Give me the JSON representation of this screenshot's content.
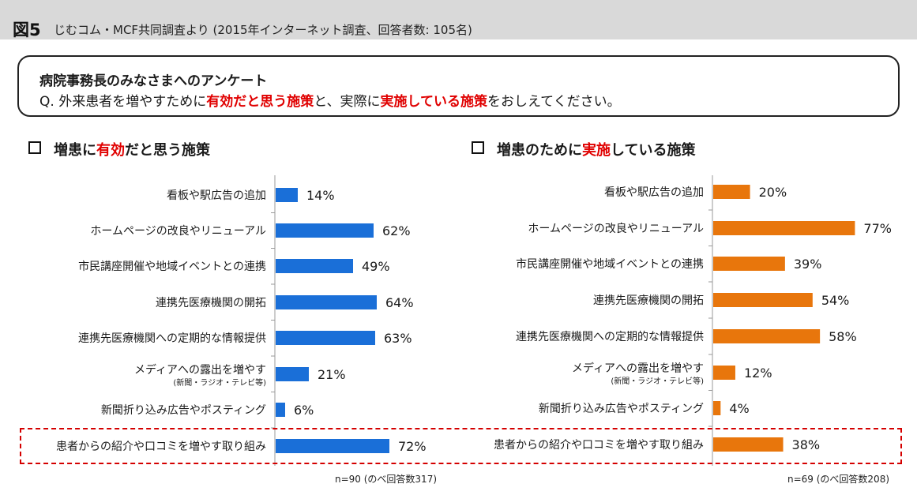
{
  "header": {
    "figure_label": "図5",
    "title": "じむコム・MCF共同調査より (2015年インターネット調査、回答者数: 105名)"
  },
  "question": {
    "title": "病院事務長のみなさまへのアンケート",
    "text_1": "Q. 外来患者を増やすために",
    "highlight_1": "有効だと思う施策",
    "text_2": "と、実際に",
    "highlight_2": "実施している施策",
    "text_3": "をおしえてください。"
  },
  "left_panel": {
    "title_1": "増患に",
    "title_highlight": "有効",
    "title_2": "だと思う施策",
    "footnote": "n=90 (のべ回答数317)"
  },
  "right_panel": {
    "title_1": "増患のために",
    "title_highlight": "実施",
    "title_2": "している施策",
    "footnote": "n=69 (のべ回答数208)"
  },
  "colors": {
    "left_bar": "#1a6fd8",
    "right_bar": "#e8760c",
    "highlight_red": "#e00000"
  },
  "chart_data": [
    {
      "type": "bar",
      "orientation": "horizontal",
      "title": "増患に有効だと思う施策",
      "categories": [
        "看板や駅広告の追加",
        "ホームページの改良やリニューアル",
        "市民講座開催や地域イベントとの連携",
        "連携先医療機関の開拓",
        "連携先医療機関への定期的な情報提供",
        "メディアへの露出を増やす",
        "新聞折り込み広告やポスティング",
        "患者からの紹介や口コミを増やす取り組み"
      ],
      "category_subtitles": [
        "",
        "",
        "",
        "",
        "",
        "(新聞・ラジオ・テレビ等)",
        "",
        ""
      ],
      "values": [
        14,
        62,
        49,
        64,
        63,
        21,
        6,
        72
      ],
      "value_labels": [
        "14%",
        "62%",
        "49%",
        "64%",
        "63%",
        "21%",
        "6%",
        "72%"
      ],
      "unit": "%",
      "xlim": [
        0,
        100
      ]
    },
    {
      "type": "bar",
      "orientation": "horizontal",
      "title": "増患のために実施している施策",
      "categories": [
        "看板や駅広告の追加",
        "ホームページの改良やリニューアル",
        "市民講座開催や地域イベントとの連携",
        "連携先医療機関の開拓",
        "連携先医療機関への定期的な情報提供",
        "メディアへの露出を増やす",
        "新聞折り込み広告やポスティング",
        "患者からの紹介や口コミを増やす取り組み"
      ],
      "category_subtitles": [
        "",
        "",
        "",
        "",
        "",
        "(新聞・ラジオ・テレビ等)",
        "",
        ""
      ],
      "values": [
        20,
        77,
        39,
        54,
        58,
        12,
        4,
        38
      ],
      "value_labels": [
        "20%",
        "77%",
        "39%",
        "54%",
        "58%",
        "12%",
        "4%",
        "38%"
      ],
      "unit": "%",
      "xlim": [
        0,
        100
      ]
    }
  ]
}
